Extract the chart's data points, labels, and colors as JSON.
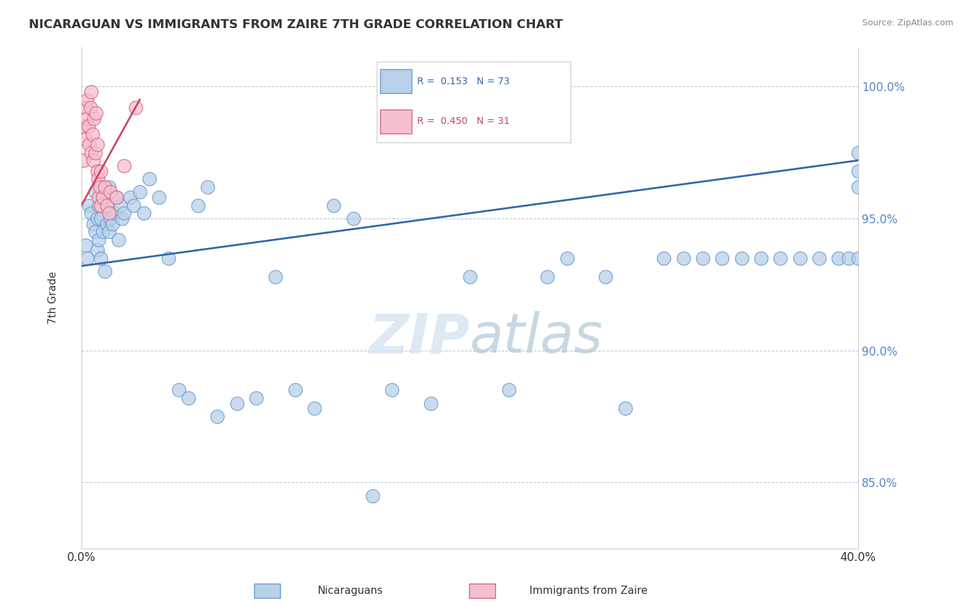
{
  "title": "NICARAGUAN VS IMMIGRANTS FROM ZAIRE 7TH GRADE CORRELATION CHART",
  "source": "Source: ZipAtlas.com",
  "ylabel": "7th Grade",
  "xmin": 0.0,
  "xmax": 40.0,
  "ymin": 82.5,
  "ymax": 101.5,
  "blue_R": 0.153,
  "blue_N": 73,
  "pink_R": 0.45,
  "pink_N": 31,
  "blue_color": "#b8d0e8",
  "blue_edge": "#6699cc",
  "pink_color": "#f5c0ce",
  "pink_edge": "#d96080",
  "blue_line_color": "#3366aa",
  "pink_line_color": "#cc4466",
  "watermark_zip": "ZIP",
  "watermark_atlas": "atlas",
  "legend_label_blue": "Nicaraguans",
  "legend_label_pink": "Immigrants from Zaire",
  "blue_x": [
    0.2,
    0.3,
    0.4,
    0.5,
    0.6,
    0.7,
    0.7,
    0.8,
    0.8,
    0.9,
    0.9,
    1.0,
    1.0,
    1.0,
    1.1,
    1.1,
    1.2,
    1.2,
    1.3,
    1.3,
    1.4,
    1.4,
    1.5,
    1.6,
    1.7,
    1.8,
    1.9,
    2.0,
    2.1,
    2.2,
    2.5,
    2.7,
    3.0,
    3.2,
    3.5,
    4.0,
    4.5,
    5.0,
    5.5,
    6.0,
    6.5,
    7.0,
    8.0,
    9.0,
    10.0,
    11.0,
    12.0,
    13.0,
    14.0,
    15.0,
    16.0,
    18.0,
    20.0,
    22.0,
    24.0,
    25.0,
    27.0,
    28.0,
    30.0,
    31.0,
    32.0,
    33.0,
    34.0,
    35.0,
    36.0,
    37.0,
    38.0,
    39.0,
    39.5,
    40.0,
    40.0,
    40.0,
    40.0
  ],
  "blue_y": [
    94.0,
    93.5,
    95.5,
    95.2,
    94.8,
    96.0,
    94.5,
    95.0,
    93.8,
    95.5,
    94.2,
    96.2,
    95.0,
    93.5,
    95.8,
    94.5,
    96.0,
    93.0,
    95.5,
    94.8,
    94.5,
    96.2,
    95.0,
    94.8,
    95.2,
    95.8,
    94.2,
    95.5,
    95.0,
    95.2,
    95.8,
    95.5,
    96.0,
    95.2,
    96.5,
    95.8,
    93.5,
    88.5,
    88.2,
    95.5,
    96.2,
    87.5,
    88.0,
    88.2,
    92.8,
    88.5,
    87.8,
    95.5,
    95.0,
    84.5,
    88.5,
    88.0,
    92.8,
    88.5,
    92.8,
    93.5,
    92.8,
    87.8,
    93.5,
    93.5,
    93.5,
    93.5,
    93.5,
    93.5,
    93.5,
    93.5,
    93.5,
    93.5,
    93.5,
    93.5,
    96.2,
    96.8,
    97.5
  ],
  "pink_x": [
    0.1,
    0.15,
    0.2,
    0.25,
    0.3,
    0.3,
    0.35,
    0.4,
    0.45,
    0.5,
    0.5,
    0.55,
    0.6,
    0.65,
    0.7,
    0.75,
    0.8,
    0.8,
    0.85,
    0.9,
    0.95,
    1.0,
    1.0,
    1.1,
    1.2,
    1.3,
    1.4,
    1.5,
    1.8,
    2.2,
    2.8
  ],
  "pink_y": [
    97.2,
    98.5,
    98.0,
    99.2,
    98.8,
    99.5,
    98.5,
    97.8,
    99.2,
    97.5,
    99.8,
    98.2,
    97.2,
    98.8,
    97.5,
    99.0,
    97.8,
    96.8,
    96.5,
    95.8,
    96.2,
    95.5,
    96.8,
    95.8,
    96.2,
    95.5,
    95.2,
    96.0,
    95.8,
    97.0,
    99.2
  ]
}
